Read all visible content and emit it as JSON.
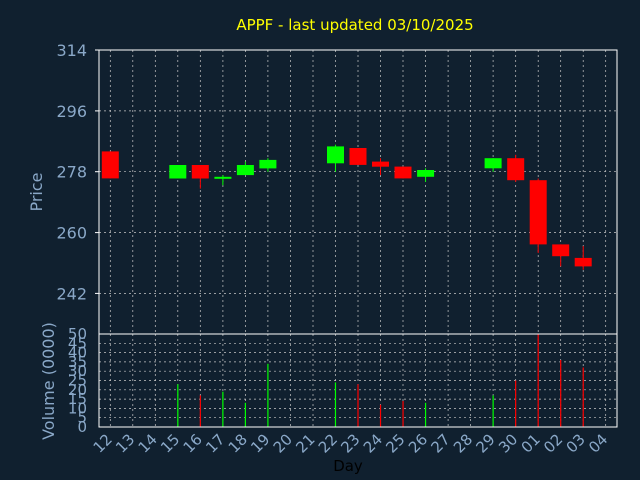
{
  "colors": {
    "background": "#10202f",
    "title": "#ffff00",
    "axis_text": "#8aa8c8",
    "day_axis_text": "#000000",
    "frame": "#ffffff",
    "grid": "#c8c8c8",
    "up": "#00ff00",
    "down": "#ff0000"
  },
  "chart_data": [
    {
      "type": "candlestick",
      "title": "APPF - last updated 03/10/2025",
      "ylabel": "Price",
      "ylim": [
        230,
        314
      ],
      "yticks": [
        "314",
        "296",
        "278",
        "260",
        "242"
      ],
      "grid": true,
      "candles": [
        {
          "day": "12",
          "open": 284,
          "close": 276,
          "high": 284,
          "low": 276
        },
        {
          "day": "15",
          "open": 276,
          "close": 280,
          "high": 280,
          "low": 276
        },
        {
          "day": "16",
          "open": 280,
          "close": 276,
          "high": 280,
          "low": 273
        },
        {
          "day": "17",
          "open": 276,
          "close": 276.5,
          "high": 277,
          "low": 274
        },
        {
          "day": "18",
          "open": 277,
          "close": 280,
          "high": 281,
          "low": 277
        },
        {
          "day": "19",
          "open": 279,
          "close": 281.5,
          "high": 282,
          "low": 278
        },
        {
          "day": "22",
          "open": 280.5,
          "close": 285.5,
          "high": 286,
          "low": 278
        },
        {
          "day": "23",
          "open": 285,
          "close": 280,
          "high": 285,
          "low": 280
        },
        {
          "day": "24",
          "open": 281,
          "close": 279.5,
          "high": 282,
          "low": 277
        },
        {
          "day": "25",
          "open": 279.5,
          "close": 276,
          "high": 279.5,
          "low": 276
        },
        {
          "day": "26",
          "open": 276.5,
          "close": 278.5,
          "high": 279,
          "low": 275
        },
        {
          "day": "29",
          "open": 279,
          "close": 282,
          "high": 282,
          "low": 278
        },
        {
          "day": "30",
          "open": 282,
          "close": 275.5,
          "high": 283,
          "low": 275
        },
        {
          "day": "01",
          "open": 275.5,
          "close": 256.5,
          "high": 276,
          "low": 254
        },
        {
          "day": "02",
          "open": 256.5,
          "close": 253,
          "high": 256.5,
          "low": 250
        },
        {
          "day": "03",
          "open": 252.5,
          "close": 250,
          "high": 256,
          "low": 249
        }
      ]
    },
    {
      "type": "bar",
      "ylabel": "Volume (0000)",
      "xlabel": "Day",
      "ylim": [
        0,
        50
      ],
      "yticks": [
        "50",
        "45",
        "40",
        "35",
        "30",
        "25",
        "20",
        "15",
        "10",
        "5",
        "0"
      ],
      "x_labels": [
        "12",
        "13",
        "14",
        "15",
        "16",
        "17",
        "18",
        "19",
        "20",
        "21",
        "22",
        "23",
        "24",
        "25",
        "26",
        "27",
        "28",
        "29",
        "30",
        "01",
        "02",
        "03",
        "04"
      ],
      "grid": true,
      "bars": [
        {
          "day": "15",
          "value": 23,
          "direction": "up"
        },
        {
          "day": "16",
          "value": 17,
          "direction": "down"
        },
        {
          "day": "17",
          "value": 19,
          "direction": "up"
        },
        {
          "day": "18",
          "value": 13,
          "direction": "up"
        },
        {
          "day": "19",
          "value": 34,
          "direction": "up"
        },
        {
          "day": "22",
          "value": 24,
          "direction": "up"
        },
        {
          "day": "23",
          "value": 23,
          "direction": "down"
        },
        {
          "day": "24",
          "value": 12,
          "direction": "down"
        },
        {
          "day": "25",
          "value": 14,
          "direction": "down"
        },
        {
          "day": "26",
          "value": 13,
          "direction": "up"
        },
        {
          "day": "29",
          "value": 17,
          "direction": "up"
        },
        {
          "day": "30",
          "value": 25,
          "direction": "down"
        },
        {
          "day": "01",
          "value": 50,
          "direction": "down"
        },
        {
          "day": "02",
          "value": 36,
          "direction": "down"
        },
        {
          "day": "03",
          "value": 32,
          "direction": "down"
        }
      ]
    }
  ]
}
